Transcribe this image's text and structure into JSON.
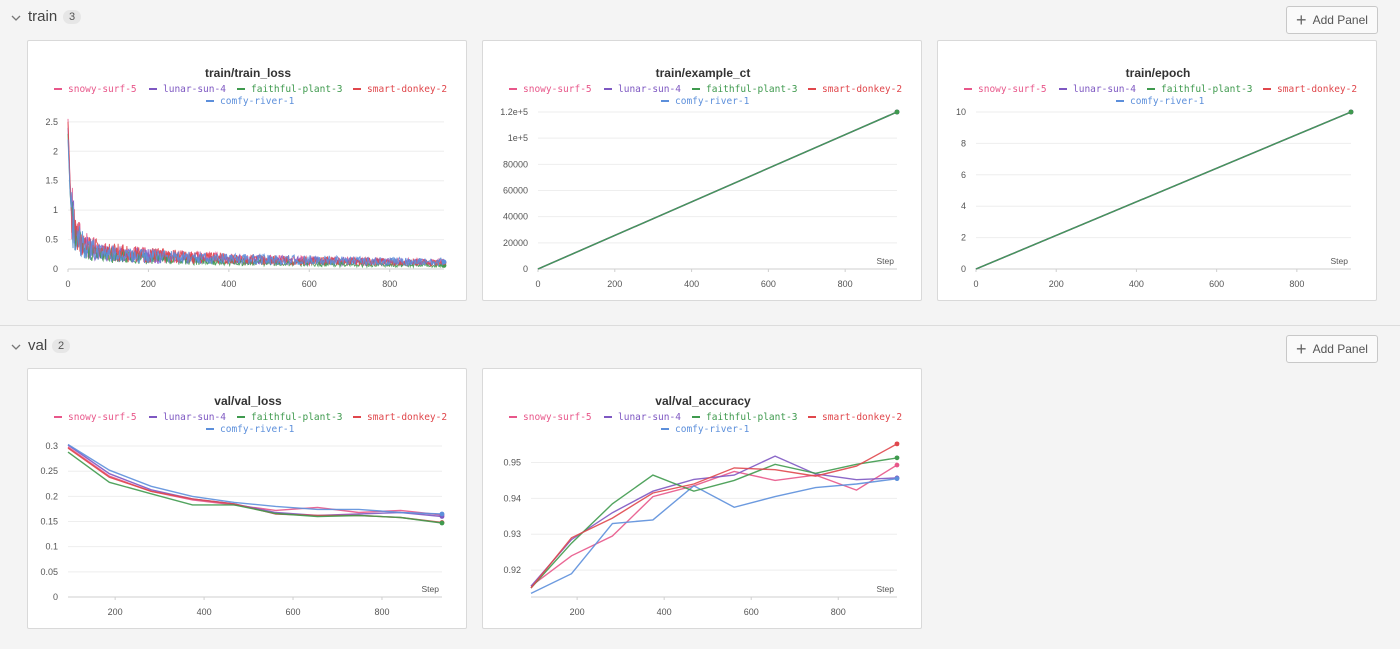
{
  "sections": {
    "train": {
      "title": "train",
      "count": "3",
      "add_label": "Add Panel"
    },
    "val": {
      "title": "val",
      "count": "2",
      "add_label": "Add Panel"
    }
  },
  "runs": [
    {
      "name": "snowy-surf-5",
      "color": "#e8578a"
    },
    {
      "name": "lunar-sun-4",
      "color": "#7e58c2"
    },
    {
      "name": "faithful-plant-3",
      "color": "#3f9a4e"
    },
    {
      "name": "smart-donkey-2",
      "color": "#e0474c"
    },
    {
      "name": "comfy-river-1",
      "color": "#5c8fdb"
    }
  ],
  "chart_data": [
    {
      "id": "train_loss",
      "type": "line",
      "title": "train/train_loss",
      "xlabel": "",
      "ylabel": "",
      "xlim": [
        0,
        935
      ],
      "ylim": [
        0,
        2.6
      ],
      "xticks": [
        0,
        200,
        400,
        600,
        800
      ],
      "yticks": [
        0,
        0.5,
        1,
        1.5,
        2,
        2.5
      ],
      "ytick_labels": [
        "0",
        "0.5",
        "1",
        "1.5",
        "2",
        "2.5"
      ],
      "noisy": true,
      "series": [
        {
          "name": "snowy-surf-5",
          "x": [
            0,
            5,
            10,
            20,
            40,
            80,
            150,
            250,
            400,
            600,
            800,
            935
          ],
          "y": [
            2.55,
            1.5,
            0.95,
            0.6,
            0.42,
            0.32,
            0.26,
            0.22,
            0.17,
            0.14,
            0.12,
            0.11
          ]
        },
        {
          "name": "lunar-sun-4",
          "x": [
            0,
            5,
            10,
            20,
            40,
            80,
            150,
            250,
            400,
            600,
            800,
            935
          ],
          "y": [
            2.4,
            1.4,
            0.9,
            0.55,
            0.38,
            0.29,
            0.24,
            0.2,
            0.16,
            0.14,
            0.12,
            0.11
          ]
        },
        {
          "name": "faithful-plant-3",
          "x": [
            0,
            5,
            10,
            20,
            40,
            80,
            150,
            250,
            400,
            600,
            800,
            935
          ],
          "y": [
            2.3,
            1.3,
            0.8,
            0.5,
            0.34,
            0.25,
            0.2,
            0.16,
            0.12,
            0.09,
            0.07,
            0.06
          ]
        },
        {
          "name": "smart-donkey-2",
          "x": [
            0,
            5,
            10,
            20,
            40,
            80,
            150,
            250,
            400,
            600,
            800,
            935
          ],
          "y": [
            2.5,
            1.45,
            0.92,
            0.58,
            0.4,
            0.31,
            0.26,
            0.22,
            0.17,
            0.14,
            0.12,
            0.11
          ]
        },
        {
          "name": "comfy-river-1",
          "x": [
            0,
            5,
            10,
            20,
            40,
            80,
            150,
            250,
            400,
            600,
            800,
            935
          ],
          "y": [
            2.2,
            1.3,
            0.85,
            0.55,
            0.38,
            0.29,
            0.24,
            0.2,
            0.17,
            0.15,
            0.13,
            0.12
          ]
        }
      ]
    },
    {
      "id": "example_ct",
      "type": "line",
      "title": "train/example_ct",
      "xlabel": "Step",
      "ylabel": "",
      "xlim": [
        0,
        935
      ],
      "ylim": [
        0,
        120000
      ],
      "xticks": [
        0,
        200,
        400,
        600,
        800
      ],
      "yticks": [
        0,
        20000,
        40000,
        60000,
        80000,
        100000,
        120000
      ],
      "ytick_labels": [
        "0",
        "20000",
        "40000",
        "60000",
        "80000",
        "1e+5",
        "1.2e+5"
      ],
      "series": [
        {
          "name": "snowy-surf-5",
          "x": [
            0,
            935
          ],
          "y": [
            0,
            120000
          ]
        },
        {
          "name": "lunar-sun-4",
          "x": [
            0,
            935
          ],
          "y": [
            0,
            120000
          ]
        },
        {
          "name": "smart-donkey-2",
          "x": [
            0,
            935
          ],
          "y": [
            0,
            120000
          ]
        },
        {
          "name": "comfy-river-1",
          "x": [
            0,
            935
          ],
          "y": [
            0,
            120000
          ]
        },
        {
          "name": "faithful-plant-3",
          "x": [
            0,
            935
          ],
          "y": [
            0,
            120000
          ]
        }
      ]
    },
    {
      "id": "epoch",
      "type": "line",
      "title": "train/epoch",
      "xlabel": "Step",
      "ylabel": "",
      "xlim": [
        0,
        935
      ],
      "ylim": [
        0,
        10
      ],
      "xticks": [
        0,
        200,
        400,
        600,
        800
      ],
      "yticks": [
        0,
        2,
        4,
        6,
        8,
        10
      ],
      "ytick_labels": [
        "0",
        "2",
        "4",
        "6",
        "8",
        "10"
      ],
      "series": [
        {
          "name": "snowy-surf-5",
          "x": [
            0,
            935
          ],
          "y": [
            0,
            10
          ]
        },
        {
          "name": "lunar-sun-4",
          "x": [
            0,
            935
          ],
          "y": [
            0,
            10
          ]
        },
        {
          "name": "smart-donkey-2",
          "x": [
            0,
            935
          ],
          "y": [
            0,
            10
          ]
        },
        {
          "name": "comfy-river-1",
          "x": [
            0,
            935
          ],
          "y": [
            0,
            10
          ]
        },
        {
          "name": "faithful-plant-3",
          "x": [
            0,
            935
          ],
          "y": [
            0,
            10
          ]
        }
      ]
    },
    {
      "id": "val_loss",
      "type": "line",
      "title": "val/val_loss",
      "xlabel": "Step",
      "ylabel": "",
      "xlim": [
        94,
        935
      ],
      "ylim": [
        0,
        0.31
      ],
      "xticks": [
        200,
        400,
        600,
        800
      ],
      "yticks": [
        0,
        0.05,
        0.1,
        0.15,
        0.2,
        0.25,
        0.3
      ],
      "ytick_labels": [
        "0",
        "0.05",
        "0.1",
        "0.15",
        "0.2",
        "0.25",
        "0.3"
      ],
      "series": [
        {
          "name": "snowy-surf-5",
          "x": [
            94,
            187,
            281,
            374,
            468,
            561,
            655,
            748,
            842,
            935
          ],
          "y": [
            0.298,
            0.24,
            0.21,
            0.193,
            0.183,
            0.172,
            0.178,
            0.168,
            0.172,
            0.163
          ]
        },
        {
          "name": "lunar-sun-4",
          "x": [
            94,
            187,
            281,
            374,
            468,
            561,
            655,
            748,
            842,
            935
          ],
          "y": [
            0.302,
            0.245,
            0.213,
            0.195,
            0.185,
            0.168,
            0.162,
            0.165,
            0.168,
            0.16
          ]
        },
        {
          "name": "smart-donkey-2",
          "x": [
            94,
            187,
            281,
            374,
            468,
            561,
            655,
            748,
            842,
            935
          ],
          "y": [
            0.296,
            0.238,
            0.21,
            0.195,
            0.185,
            0.165,
            0.162,
            0.162,
            0.158,
            0.148
          ]
        },
        {
          "name": "comfy-river-1",
          "x": [
            94,
            187,
            281,
            374,
            468,
            561,
            655,
            748,
            842,
            935
          ],
          "y": [
            0.303,
            0.252,
            0.22,
            0.2,
            0.188,
            0.18,
            0.174,
            0.174,
            0.168,
            0.165
          ]
        },
        {
          "name": "faithful-plant-3",
          "x": [
            94,
            187,
            281,
            374,
            468,
            561,
            655,
            748,
            842,
            935
          ],
          "y": [
            0.288,
            0.228,
            0.205,
            0.183,
            0.183,
            0.166,
            0.16,
            0.162,
            0.158,
            0.147
          ]
        }
      ]
    },
    {
      "id": "val_accuracy",
      "type": "line",
      "title": "val/val_accuracy",
      "xlabel": "Step",
      "ylabel": "",
      "xlim": [
        94,
        935
      ],
      "ylim": [
        0.9125,
        0.956
      ],
      "xticks": [
        200,
        400,
        600,
        800
      ],
      "yticks": [
        0.92,
        0.93,
        0.94,
        0.95
      ],
      "ytick_labels": [
        "0.92",
        "0.93",
        "0.94",
        "0.95"
      ],
      "series": [
        {
          "name": "snowy-surf-5",
          "x": [
            94,
            187,
            281,
            374,
            468,
            561,
            655,
            748,
            842,
            935
          ],
          "y": [
            0.9155,
            0.924,
            0.9295,
            0.9405,
            0.9435,
            0.9475,
            0.945,
            0.9465,
            0.9423,
            0.9493
          ]
        },
        {
          "name": "lunar-sun-4",
          "x": [
            94,
            187,
            281,
            374,
            468,
            561,
            655,
            748,
            842,
            935
          ],
          "y": [
            0.9155,
            0.9285,
            0.936,
            0.942,
            0.9453,
            0.9465,
            0.9518,
            0.9468,
            0.9452,
            0.9457
          ]
        },
        {
          "name": "comfy-river-1",
          "x": [
            94,
            187,
            281,
            374,
            468,
            561,
            655,
            748,
            842,
            935
          ],
          "y": [
            0.9135,
            0.919,
            0.933,
            0.934,
            0.9435,
            0.9375,
            0.9405,
            0.943,
            0.944,
            0.9455
          ]
        },
        {
          "name": "faithful-plant-3",
          "x": [
            94,
            187,
            281,
            374,
            468,
            561,
            655,
            748,
            842,
            935
          ],
          "y": [
            0.915,
            0.9275,
            0.9385,
            0.9465,
            0.942,
            0.945,
            0.9495,
            0.947,
            0.9495,
            0.9513
          ]
        },
        {
          "name": "smart-donkey-2",
          "x": [
            94,
            187,
            281,
            374,
            468,
            561,
            655,
            748,
            842,
            935
          ],
          "y": [
            0.915,
            0.929,
            0.9345,
            0.9415,
            0.944,
            0.9485,
            0.948,
            0.9462,
            0.949,
            0.9552
          ]
        }
      ]
    }
  ]
}
